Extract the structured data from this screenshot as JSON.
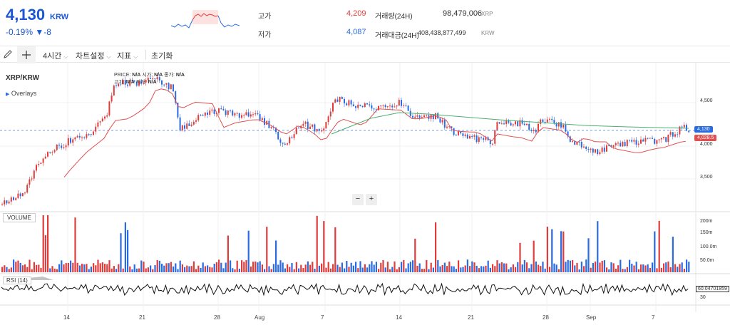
{
  "header": {
    "price": "4,130",
    "currency": "KRW",
    "change": "-0.19% ▼-8",
    "high_label": "고가",
    "high_value": "4,209",
    "low_label": "저가",
    "low_value": "4,087",
    "volume_label": "거래량(24H)",
    "volume_value": "98,479,006",
    "volume_unit": "XRP",
    "amount_label": "거래대금(24H)",
    "amount_value": "408,438,877,499",
    "amount_unit": "KRW"
  },
  "toolbar": {
    "pencil_icon": "pencil-icon",
    "crosshair_icon": "crosshair-icon",
    "interval": "4시간",
    "chart_settings": "차트설정",
    "indicators": "지표",
    "reset": "초기화"
  },
  "chart": {
    "symbol": "XRP/KRW",
    "overlays": "Overlays",
    "ohlc_labels": [
      "PRICE:",
      "N/A",
      "시가:",
      "N/A",
      "종가:",
      "N/A",
      "고가:",
      "N/A",
      "저가:",
      "N/A"
    ],
    "price_ticks": [
      "4,500",
      "4,000",
      "3,500"
    ],
    "last_price_tag": "4,130",
    "ma_tag": "4,028.5",
    "zoom_minus": "−",
    "zoom_plus": "+",
    "volume_label": "VOLUME",
    "volume_ticks": [
      "200m",
      "150m",
      "100.0m",
      "50.0m"
    ],
    "rsi_label": "RSI (14)",
    "rsi_value": "60.04701859",
    "rsi_tick": "30",
    "x_ticks": [
      "14",
      "21",
      "28",
      "Aug",
      "7",
      "14",
      "21",
      "28",
      "Sep",
      "7"
    ]
  },
  "colors": {
    "up": "#e03c3c",
    "down": "#2a6be0",
    "ma_red": "#e05050",
    "ma_green": "#4caf70"
  }
}
